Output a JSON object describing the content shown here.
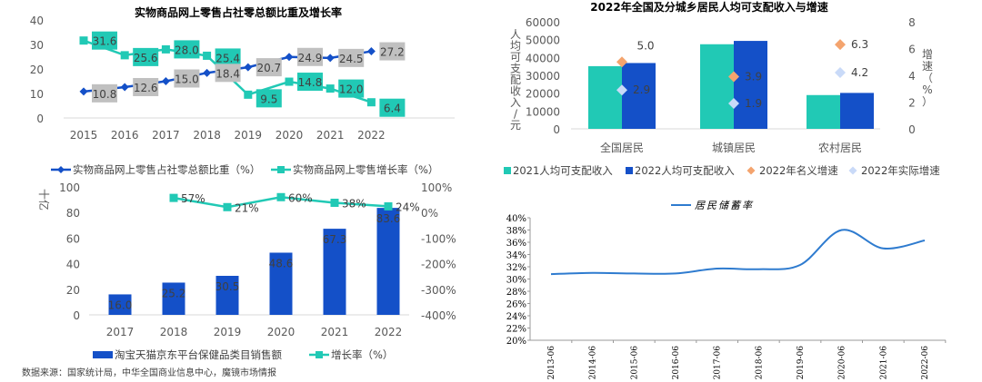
{
  "source_note": "数据来源：国家统计局，中华全国商业信息中心，魔镜市场情报",
  "colors": {
    "teal": "#21C9B5",
    "blue": "#1450C8",
    "gray_label": "#C0C0C0",
    "orange": "#F4A46E",
    "light_blue": "#C9DAF8",
    "line_blue": "#2E7BCF",
    "axis": "#D9D9D9"
  },
  "chart_data": [
    {
      "id": "online-retail",
      "type": "line",
      "title": "实物商品网上零售占社零总额比重及增长率",
      "x": [
        "2015",
        "2016",
        "2017",
        "2018",
        "2019",
        "2020",
        "2021",
        "2022"
      ],
      "ylim": [
        0,
        40
      ],
      "yticks": [
        "0",
        "10",
        "20",
        "30",
        "40"
      ],
      "series": [
        {
          "name": "实物商品网上零售占社零总额比重（%）",
          "values": [
            10.8,
            12.6,
            15.0,
            18.4,
            20.7,
            24.9,
            24.5,
            27.2
          ],
          "labels": [
            "10.8",
            "12.6",
            "15.0",
            "18.4",
            "20.7",
            "24.9",
            "24.5",
            "27.2"
          ],
          "marker": "diamond"
        },
        {
          "name": "实物商品网上零售增长率（%）",
          "values": [
            31.6,
            25.6,
            28.0,
            25.4,
            9.5,
            14.8,
            12.0,
            6.4
          ],
          "labels": [
            "31.6",
            "25.6",
            "28.0",
            "25.4",
            "9.5",
            "14.8",
            "12.0",
            "6.4"
          ],
          "marker": "square"
        }
      ],
      "grid": false,
      "legend": "bottom"
    },
    {
      "id": "disposable-income",
      "type": "bar",
      "title": "2022年全国及分城乡居民人均可支配收入与增速",
      "categories": [
        "全国居民",
        "城镇居民",
        "农村居民"
      ],
      "ylabel": "人均可支配收入/元",
      "ylabel_chars": [
        "人",
        "均",
        "可",
        "支",
        "配",
        "收",
        "入",
        "/",
        "元"
      ],
      "y2label_chars": [
        "增",
        "速",
        "（",
        "%",
        "）"
      ],
      "ylim": [
        0,
        60000
      ],
      "yticks": [
        "0",
        "10000",
        "20000",
        "30000",
        "40000",
        "50000",
        "60000"
      ],
      "y2lim": [
        0,
        8
      ],
      "y2ticks": [
        "0",
        "2",
        "4",
        "6",
        "8"
      ],
      "series": [
        {
          "name": "2021人均可支配收入",
          "type": "bar",
          "values": [
            35128,
            47412,
            18931
          ]
        },
        {
          "name": "2022人均可支配收入",
          "type": "bar",
          "values": [
            36883,
            49283,
            20133
          ]
        },
        {
          "name": "2022年名义增速",
          "type": "scatter",
          "axis": "y2",
          "values": [
            5.0,
            3.9,
            6.3
          ],
          "labels": [
            "5.0",
            "3.9",
            "6.3"
          ]
        },
        {
          "name": "2022年实际增速",
          "type": "scatter",
          "axis": "y2",
          "values": [
            2.9,
            1.9,
            4.2
          ],
          "labels": [
            "2.9",
            "1.9",
            "4.2"
          ]
        }
      ],
      "legend": "bottom"
    },
    {
      "id": "health-sales",
      "type": "bar",
      "title": "",
      "categories": [
        "2017",
        "2018",
        "2019",
        "2020",
        "2021",
        "2022"
      ],
      "ylabel": "十亿",
      "ylim": [
        0,
        100
      ],
      "yticks": [
        "0",
        "20",
        "40",
        "60",
        "80",
        "100"
      ],
      "y2lim": [
        -400,
        100
      ],
      "y2ticks": [
        "-400%",
        "-300%",
        "-200%",
        "-100%",
        "0%",
        "100%"
      ],
      "series": [
        {
          "name": "淘宝天猫京东平台保健品类目销售额",
          "type": "bar",
          "values": [
            16.0,
            25.2,
            30.5,
            48.6,
            67.3,
            83.6
          ],
          "labels": [
            "16.0",
            "25.2",
            "30.5",
            "48.6",
            "67.3",
            "83.6"
          ]
        },
        {
          "name": "增长率（%）",
          "type": "line",
          "axis": "y2",
          "values": [
            null,
            57,
            21,
            60,
            38,
            24
          ],
          "labels": [
            "",
            "57%",
            "21%",
            "60%",
            "38%",
            "24%"
          ]
        }
      ],
      "legend": "bottom"
    },
    {
      "id": "savings-rate",
      "type": "line",
      "title": "",
      "x": [
        "2013-06",
        "2014-06",
        "2015-06",
        "2016-06",
        "2017-06",
        "2018-06",
        "2019-06",
        "2020-06",
        "2021-06",
        "2022-06"
      ],
      "ylim": [
        20,
        40
      ],
      "yticks": [
        "20%",
        "22%",
        "24%",
        "26%",
        "28%",
        "30%",
        "32%",
        "34%",
        "36%",
        "38%",
        "40%"
      ],
      "series": [
        {
          "name": "居民储蓄率",
          "values": [
            30.8,
            31.0,
            30.9,
            30.9,
            31.7,
            31.6,
            32.3,
            38.0,
            35.0,
            36.3
          ]
        }
      ],
      "legend": "top"
    }
  ]
}
